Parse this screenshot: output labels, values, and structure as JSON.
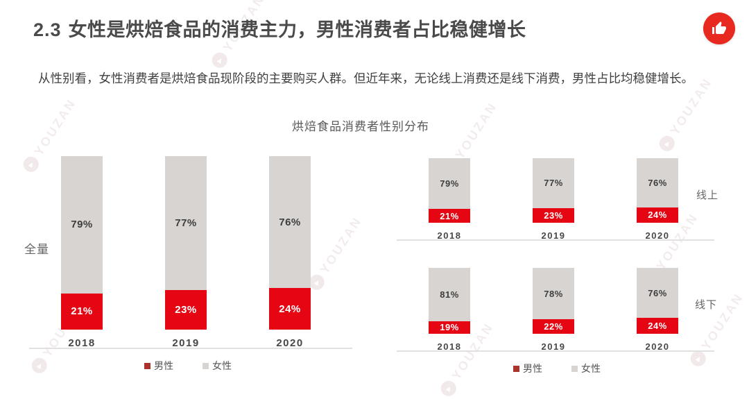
{
  "header": {
    "section_number": "2.3",
    "title": "女性是烘焙食品的消费主力，男性消费者占比稳健增长"
  },
  "intro_text": "从性别看，女性消费者是烘焙食品现阶段的主要购买人群。但近年来，无论线上消费还是线下消费，男性占比均稳健增长。",
  "chart_main_title": "烘焙食品消费者性别分布",
  "watermark_text": "YOUZAN",
  "colors": {
    "male_bar": "#e60613",
    "female_bar": "#d8d4d1",
    "legend_male_swatch": "#ab322d",
    "like_icon_background": "#e8291f",
    "axis_line": "#e3e1df"
  },
  "legend": {
    "male_label": "男性",
    "female_label": "女性"
  },
  "chart_data": [
    {
      "type": "bar",
      "stacked": true,
      "id": "full",
      "group_label": "全量",
      "categories": [
        "2018",
        "2019",
        "2020"
      ],
      "series": [
        {
          "name": "男性",
          "color": "#e60613",
          "values": [
            21,
            23,
            24
          ]
        },
        {
          "name": "女性",
          "color": "#d8d4d1",
          "values": [
            79,
            77,
            76
          ]
        }
      ],
      "unit": "%",
      "ylim": [
        0,
        100
      ],
      "grid": false,
      "value_labels": "inside-center"
    },
    {
      "type": "bar",
      "stacked": true,
      "id": "online",
      "group_label": "线上",
      "categories": [
        "2018",
        "2019",
        "2020"
      ],
      "series": [
        {
          "name": "男性",
          "color": "#e60613",
          "values": [
            21,
            23,
            24
          ]
        },
        {
          "name": "女性",
          "color": "#d8d4d1",
          "values": [
            79,
            77,
            76
          ]
        }
      ],
      "unit": "%",
      "ylim": [
        0,
        100
      ],
      "grid": false,
      "value_labels": "inside-center"
    },
    {
      "type": "bar",
      "stacked": true,
      "id": "offline",
      "group_label": "线下",
      "categories": [
        "2018",
        "2019",
        "2020"
      ],
      "series": [
        {
          "name": "男性",
          "color": "#e60613",
          "values": [
            19,
            22,
            24
          ]
        },
        {
          "name": "女性",
          "color": "#d8d4d1",
          "values": [
            81,
            78,
            76
          ]
        }
      ],
      "unit": "%",
      "ylim": [
        0,
        100
      ],
      "grid": false,
      "value_labels": "inside-center"
    }
  ]
}
